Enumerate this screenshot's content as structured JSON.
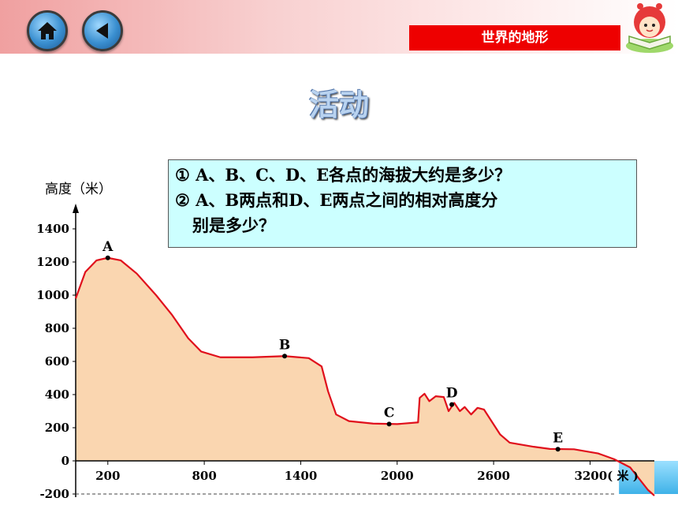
{
  "header": {
    "home_icon": "home-icon",
    "back_icon": "back-arrow-icon",
    "section_label": "世界的地形",
    "mascot_icon": "mascot-reading-book-icon"
  },
  "slide": {
    "title": "活动"
  },
  "questions": {
    "q1": "① A、B、C、D、E各点的海拔大约是多少？",
    "q2_line1": "② A、B两点和D、E两点之间的相对高度分",
    "q2_line2": "别是多少？"
  },
  "chart_data": {
    "type": "area",
    "title": "",
    "ylabel": "高度（米）",
    "xlabel": "米",
    "x_unit_tick_label": "3200( 米 )",
    "ylim": [
      -200,
      1400
    ],
    "xlim": [
      0,
      3600
    ],
    "y_ticks": [
      -200,
      0,
      200,
      400,
      600,
      800,
      1000,
      1200,
      1400
    ],
    "x_ticks": [
      200,
      800,
      1400,
      2000,
      2600,
      3200
    ],
    "fill_color": "#fad6b0",
    "line_color": "#e0101c",
    "sea_color": "#3fb2e8",
    "profile": [
      {
        "x": 0,
        "y": 980
      },
      {
        "x": 60,
        "y": 1140
      },
      {
        "x": 130,
        "y": 1210
      },
      {
        "x": 200,
        "y": 1225
      },
      {
        "x": 280,
        "y": 1210
      },
      {
        "x": 380,
        "y": 1130
      },
      {
        "x": 500,
        "y": 1000
      },
      {
        "x": 600,
        "y": 880
      },
      {
        "x": 700,
        "y": 740
      },
      {
        "x": 780,
        "y": 660
      },
      {
        "x": 900,
        "y": 625
      },
      {
        "x": 1100,
        "y": 625
      },
      {
        "x": 1300,
        "y": 632
      },
      {
        "x": 1450,
        "y": 620
      },
      {
        "x": 1530,
        "y": 570
      },
      {
        "x": 1570,
        "y": 420
      },
      {
        "x": 1620,
        "y": 280
      },
      {
        "x": 1700,
        "y": 240
      },
      {
        "x": 1850,
        "y": 225
      },
      {
        "x": 2000,
        "y": 222
      },
      {
        "x": 2130,
        "y": 232
      },
      {
        "x": 2140,
        "y": 380
      },
      {
        "x": 2170,
        "y": 405
      },
      {
        "x": 2200,
        "y": 360
      },
      {
        "x": 2240,
        "y": 390
      },
      {
        "x": 2290,
        "y": 385
      },
      {
        "x": 2320,
        "y": 300
      },
      {
        "x": 2355,
        "y": 350
      },
      {
        "x": 2390,
        "y": 300
      },
      {
        "x": 2420,
        "y": 325
      },
      {
        "x": 2460,
        "y": 280
      },
      {
        "x": 2500,
        "y": 320
      },
      {
        "x": 2540,
        "y": 310
      },
      {
        "x": 2580,
        "y": 250
      },
      {
        "x": 2640,
        "y": 160
      },
      {
        "x": 2700,
        "y": 110
      },
      {
        "x": 2850,
        "y": 85
      },
      {
        "x": 2950,
        "y": 72
      },
      {
        "x": 3100,
        "y": 70
      },
      {
        "x": 3250,
        "y": 45
      },
      {
        "x": 3350,
        "y": 10
      },
      {
        "x": 3450,
        "y": -40
      },
      {
        "x": 3560,
        "y": -175
      },
      {
        "x": 3600,
        "y": -210
      }
    ],
    "points": [
      {
        "label": "A",
        "x": 200,
        "y": 1225
      },
      {
        "label": "B",
        "x": 1300,
        "y": 632
      },
      {
        "label": "C",
        "x": 1950,
        "y": 222
      },
      {
        "label": "D",
        "x": 2340,
        "y": 340
      },
      {
        "label": "E",
        "x": 3000,
        "y": 70
      }
    ],
    "sea": {
      "x_start": 3380,
      "x_end": 3600,
      "y_top": 0,
      "y_bottom": -200
    }
  }
}
